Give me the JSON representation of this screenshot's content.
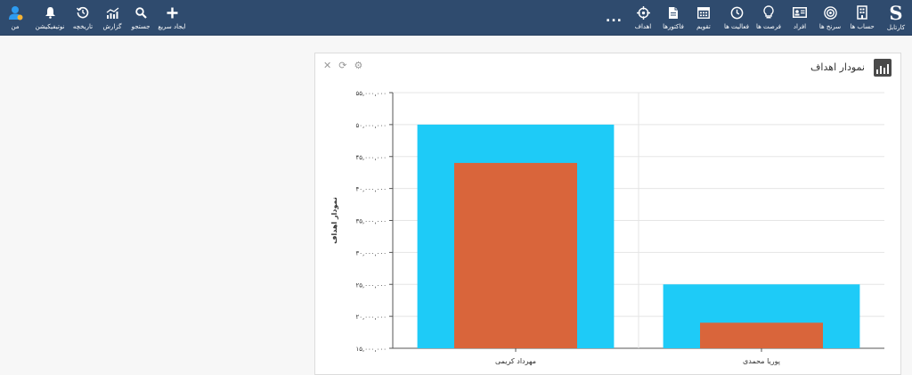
{
  "topbar": {
    "brand_label": "کارتابل",
    "nav_items": [
      {
        "label": "حساب ها",
        "icon": "building-icon"
      },
      {
        "label": "سرنخ ها",
        "icon": "target-icon"
      },
      {
        "label": "افراد",
        "icon": "contact-card-icon"
      },
      {
        "label": "فرصت ها",
        "icon": "lightbulb-icon"
      },
      {
        "label": "فعالیت ها",
        "icon": "clock-icon"
      },
      {
        "label": "تقویم",
        "icon": "calendar-icon"
      },
      {
        "label": "فاکتورها",
        "icon": "document-icon"
      },
      {
        "label": "اهداف",
        "icon": "crosshair-icon"
      }
    ],
    "more_label": "...",
    "user_items": [
      {
        "label": "ایجاد سریع",
        "icon": "plus-icon"
      },
      {
        "label": "جستجو",
        "icon": "search-icon"
      },
      {
        "label": "گزارش",
        "icon": "chart-icon"
      },
      {
        "label": "تاریخچه",
        "icon": "history-icon"
      },
      {
        "label": "نوتیفیکیشن",
        "icon": "bell-icon"
      },
      {
        "label": "من",
        "icon": "user-avatar-icon"
      }
    ]
  },
  "panel": {
    "title": "نمودار اهداف",
    "tool_icons": [
      "gear-icon",
      "refresh-icon",
      "close-icon"
    ]
  },
  "chart_data": {
    "type": "bar",
    "categories": [
      "مهرداد کریمی",
      "پوریا محمدی"
    ],
    "series": [
      {
        "values": [
          50000000,
          25000000
        ],
        "color": "#1ecbf7"
      },
      {
        "values": [
          44000000,
          19000000
        ],
        "color": "#d9653b"
      }
    ],
    "ylabel": "نمودار اهداف",
    "ylim": [
      15000000,
      55000000
    ],
    "yticks": [
      15000000,
      20000000,
      25000000,
      30000000,
      35000000,
      40000000,
      45000000,
      50000000,
      55000000
    ],
    "ytick_labels": [
      "۱۵,۰۰۰,۰۰۰",
      "۲۰,۰۰۰,۰۰۰",
      "۲۵,۰۰۰,۰۰۰",
      "۳۰,۰۰۰,۰۰۰",
      "۳۵,۰۰۰,۰۰۰",
      "۴۰,۰۰۰,۰۰۰",
      "۴۵,۰۰۰,۰۰۰",
      "۵۰,۰۰۰,۰۰۰",
      "۵۵,۰۰۰,۰۰۰"
    ],
    "grid": true
  }
}
